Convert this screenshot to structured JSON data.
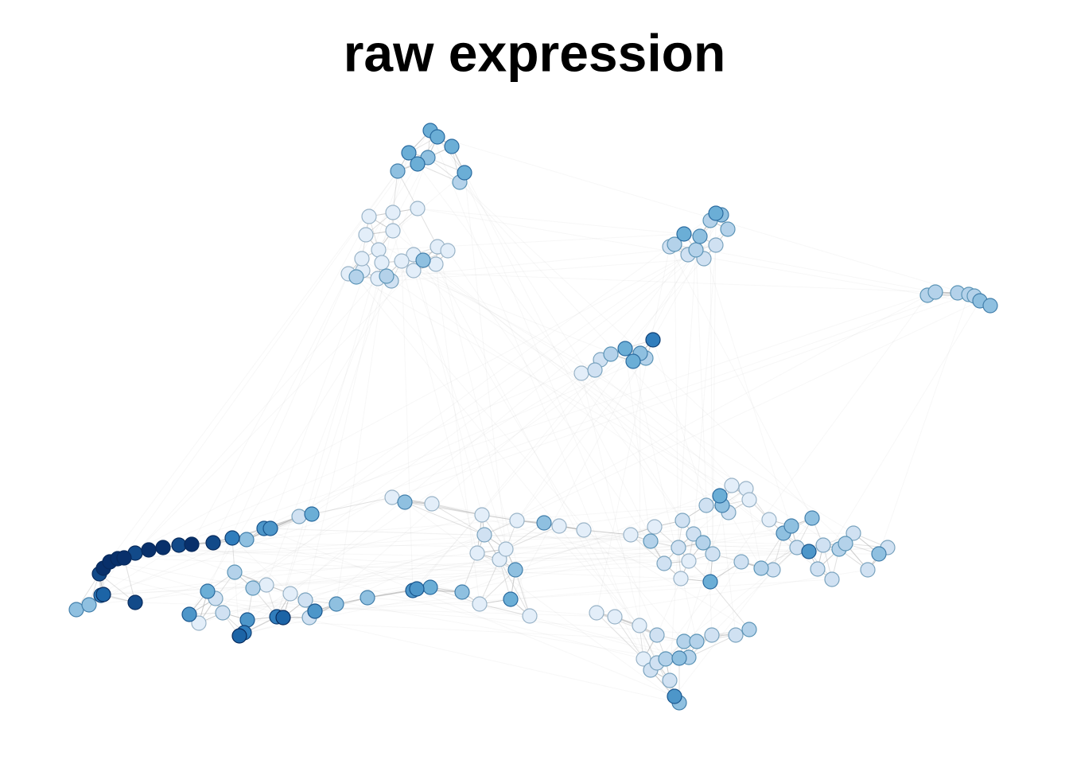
{
  "chart_data": {
    "type": "scatter",
    "title": "raw expression",
    "xlim": [
      0,
      134.4
    ],
    "ylim": [
      0,
      96
    ],
    "colorlim": [
      0,
      10
    ],
    "colorscale": [
      "#f7fbff",
      "#c6dbef",
      "#6baed6",
      "#2171b5",
      "#08306b"
    ],
    "x": [
      54.1,
      55.0,
      51.4,
      52.5,
      56.8,
      58.4,
      50.0,
      53.8,
      57.8,
      49.4,
      52.5,
      46.4,
      49.4,
      46.0,
      47.6,
      45.6,
      52.0,
      55.0,
      56.3,
      53.2,
      50.5,
      48.0,
      45.5,
      44.8,
      48.6,
      47.5,
      54.8,
      52.0,
      43.8,
      49.2,
      90.0,
      90.7,
      89.3,
      86.0,
      88.0,
      91.5,
      84.8,
      87.5,
      90.0,
      86.5,
      88.5,
      84.2,
      116.6,
      117.6,
      120.4,
      121.8,
      123.2,
      124.5,
      122.5,
      82.1,
      78.6,
      80.5,
      79.6,
      81.2,
      75.5,
      74.8,
      73.1,
      76.8,
      9.6,
      11.2,
      12.7,
      12.5,
      13.0,
      13.8,
      14.8,
      15.6,
      17.0,
      18.7,
      20.5,
      22.5,
      24.1,
      26.8,
      29.2,
      31.0,
      33.2,
      34.0,
      39.2,
      37.6,
      17.0,
      13.0,
      26.1,
      23.8,
      29.5,
      31.8,
      31.1,
      34.8,
      35.6,
      30.1,
      30.7,
      27.1,
      25.0,
      36.5,
      38.4,
      39.6,
      42.3,
      38.9,
      33.5,
      28.0,
      46.2,
      51.9,
      52.4,
      54.1,
      58.1,
      60.3,
      64.2,
      64.8,
      62.8,
      60.0,
      63.6,
      60.9,
      49.3,
      50.9,
      54.3,
      60.6,
      65.0,
      68.4,
      70.3,
      73.4,
      66.6,
      79.3,
      82.3,
      81.8,
      85.8,
      87.2,
      88.4,
      85.3,
      90.5,
      90.8,
      88.8,
      91.6,
      93.8,
      92.0,
      94.2,
      96.7,
      98.5,
      99.5,
      102.1,
      100.2,
      101.7,
      103.5,
      105.5,
      106.3,
      110.5,
      111.6,
      107.3,
      109.1,
      104.6,
      102.8,
      97.2,
      95.7,
      93.2,
      89.6,
      86.6,
      89.3,
      85.6,
      83.5,
      75.0,
      77.3,
      80.4,
      82.6,
      86.0,
      87.6,
      89.5,
      92.5,
      94.2,
      80.9,
      83.7,
      85.4,
      86.6,
      81.8,
      84.2,
      84.8,
      85.4,
      82.6
    ],
    "y": [
      79.6,
      78.8,
      76.8,
      75.4,
      77.6,
      74.3,
      74.5,
      76.2,
      73.1,
      69.3,
      69.8,
      68.8,
      67.0,
      66.5,
      64.6,
      62.0,
      64.0,
      65.0,
      64.5,
      63.3,
      63.2,
      63.0,
      63.5,
      61.2,
      61.3,
      61.0,
      62.8,
      62.0,
      61.6,
      60.7,
      69.2,
      69.0,
      68.3,
      66.6,
      66.3,
      67.2,
      65.3,
      64.6,
      65.2,
      64.0,
      63.5,
      65.0,
      58.9,
      59.3,
      59.2,
      59.0,
      58.2,
      57.6,
      58.8,
      53.3,
      52.2,
      51.6,
      50.6,
      51.0,
      50.8,
      49.5,
      49.1,
      51.5,
      19.4,
      20.0,
      21.2,
      23.9,
      24.6,
      25.4,
      25.8,
      25.9,
      26.5,
      26.9,
      27.2,
      27.5,
      27.6,
      27.8,
      28.4,
      28.2,
      29.6,
      29.6,
      31.4,
      31.1,
      20.3,
      21.3,
      21.7,
      18.8,
      24.1,
      22.1,
      18.1,
      18.5,
      18.4,
      16.1,
      16.5,
      20.8,
      17.7,
      21.4,
      20.6,
      19.2,
      20.1,
      18.4,
      22.5,
      19.0,
      20.9,
      21.8,
      22.0,
      22.2,
      21.6,
      20.1,
      20.7,
      24.4,
      25.7,
      26.5,
      27.0,
      28.8,
      33.5,
      32.9,
      32.7,
      31.3,
      30.6,
      30.3,
      29.9,
      29.4,
      18.6,
      28.8,
      29.8,
      28.0,
      30.6,
      28.9,
      27.8,
      27.2,
      33.7,
      32.5,
      32.5,
      31.6,
      34.6,
      35.0,
      33.2,
      30.7,
      29.0,
      29.9,
      30.9,
      27.2,
      26.7,
      27.5,
      27.0,
      27.7,
      26.4,
      27.2,
      29.0,
      24.4,
      23.2,
      24.5,
      24.4,
      24.6,
      25.4,
      26.4,
      25.5,
      22.9,
      23.3,
      25.2,
      19.0,
      18.5,
      17.4,
      16.2,
      15.4,
      15.4,
      16.2,
      16.2,
      16.9,
      13.2,
      13.2,
      13.3,
      13.4,
      11.8,
      10.5,
      8.5,
      7.7,
      12.7
    ],
    "values": [
      5,
      5,
      5,
      5,
      5,
      5,
      4,
      4,
      3,
      1,
      1,
      1,
      1,
      1,
      1,
      1,
      1,
      1,
      1,
      4,
      1,
      1,
      1,
      3,
      3,
      1,
      1,
      1,
      1,
      2,
      5,
      4,
      3,
      5,
      4,
      3,
      3,
      3,
      2,
      2,
      2,
      2,
      3,
      3,
      3,
      3,
      4,
      4,
      3,
      7,
      5,
      4,
      5,
      3,
      2,
      2,
      1,
      3,
      4,
      4,
      7,
      9,
      10,
      10,
      10,
      10,
      9,
      10,
      10,
      9,
      10,
      9,
      7,
      4,
      6,
      6,
      5,
      2,
      9,
      8,
      5,
      6,
      3,
      3,
      6,
      7,
      8,
      8,
      7,
      2,
      1,
      1,
      2,
      6,
      4,
      2,
      1,
      2,
      4,
      6,
      6,
      5,
      4,
      1,
      5,
      4,
      1,
      1,
      1,
      2,
      1,
      4,
      1,
      1,
      1,
      4,
      1,
      1,
      1,
      1,
      1,
      3,
      2,
      2,
      3,
      2,
      5,
      4,
      2,
      2,
      1,
      1,
      1,
      1,
      4,
      4,
      4,
      2,
      6,
      2,
      3,
      3,
      4,
      2,
      2,
      2,
      2,
      2,
      2,
      3,
      2,
      2,
      1,
      5,
      1,
      2,
      1,
      1,
      1,
      2,
      3,
      3,
      2,
      2,
      3,
      1,
      3,
      4,
      3,
      2,
      2,
      6,
      4,
      2
    ]
  }
}
